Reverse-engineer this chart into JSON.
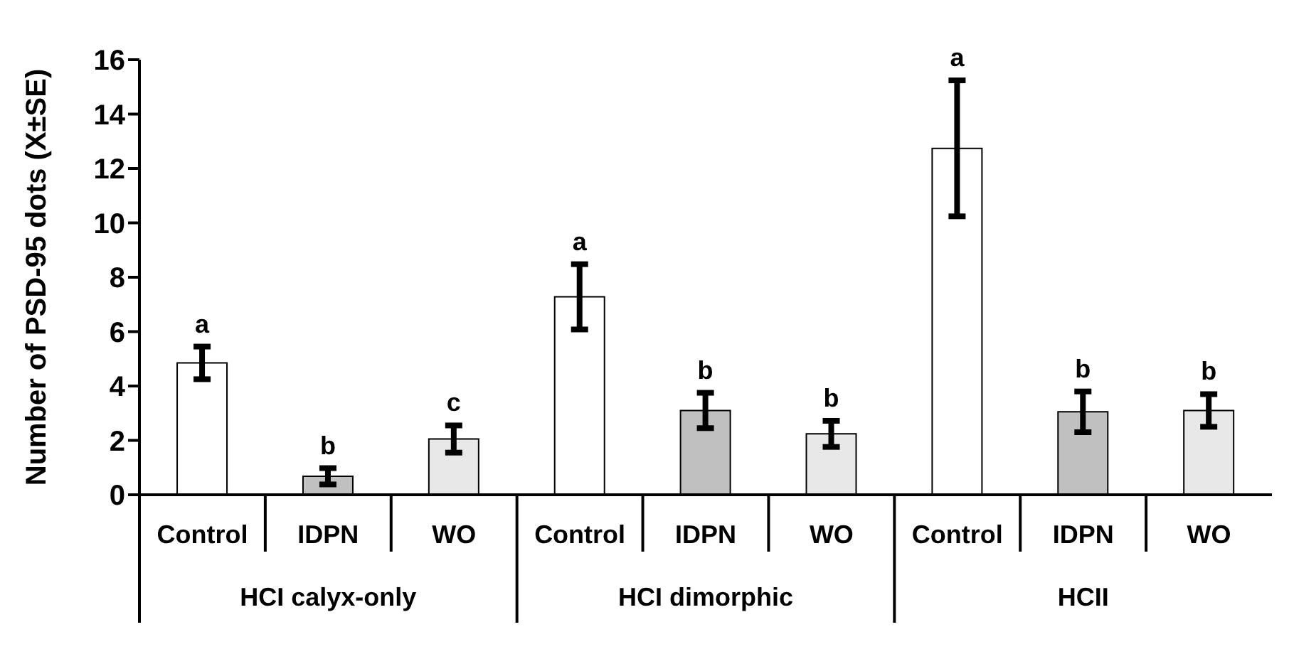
{
  "chart_data": {
    "type": "bar",
    "ylabel": "Number of PSD-95 dots (X±SE)",
    "categories": [
      "Control",
      "IDPN",
      "WO",
      "Control",
      "IDPN",
      "WO",
      "Control",
      "IDPN",
      "WO"
    ],
    "values": [
      4.85,
      0.68,
      2.05,
      7.28,
      3.1,
      2.24,
      12.74,
      3.05,
      3.1
    ],
    "errors": [
      0.6,
      0.3,
      0.5,
      1.2,
      0.65,
      0.48,
      2.5,
      0.75,
      0.6
    ],
    "colors": [
      "#ffffff",
      "#c0c0c0",
      "#e8e8e8",
      "#ffffff",
      "#c0c0c0",
      "#e8e8e8",
      "#ffffff",
      "#c0c0c0",
      "#e8e8e8"
    ],
    "value_labels": [
      "a",
      "b",
      "c",
      "a",
      "b",
      "b",
      "a",
      "b",
      "b"
    ],
    "annotations": [
      "HCI calyx-only",
      "HCI dimorphic",
      "HCII"
    ],
    "ylim": [
      0,
      16
    ],
    "yticks": [
      0,
      2,
      4,
      6,
      8,
      10,
      12,
      14,
      16
    ],
    "grid": false,
    "legend": false
  }
}
